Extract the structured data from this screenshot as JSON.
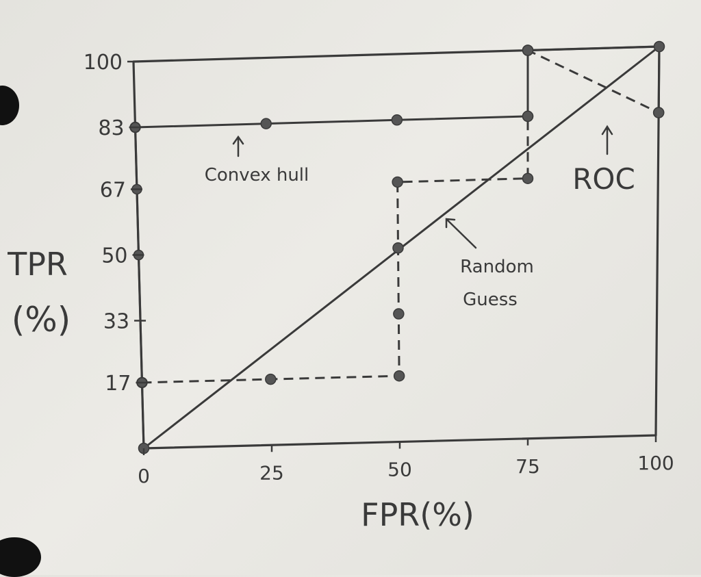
{
  "chart_data": {
    "type": "line",
    "xlabel": "FPR(%)",
    "ylabel_line1": "TPR",
    "ylabel_line2": "(%)",
    "xlim": [
      0,
      100
    ],
    "ylim": [
      0,
      100
    ],
    "x_ticks": [
      0,
      25,
      50,
      75,
      100
    ],
    "x_tick_labels": [
      "0",
      "25",
      "50",
      "75",
      "100"
    ],
    "y_ticks": [
      17,
      33,
      50,
      67,
      83,
      100
    ],
    "y_tick_labels": [
      "17",
      "33",
      "50",
      "67",
      "83",
      "100"
    ],
    "grid": false,
    "series": [
      {
        "name": "ROC",
        "style": "dashed",
        "x": [
          0,
          25,
          50,
          50,
          50,
          50,
          75,
          75,
          75,
          100
        ],
        "y": [
          17,
          17,
          17,
          33,
          50,
          67,
          67,
          83,
          100,
          83
        ]
      },
      {
        "name": "Convex hull",
        "style": "solid",
        "x": [
          0,
          0,
          25,
          50,
          75,
          75,
          100,
          100
        ],
        "y": [
          0,
          83,
          83,
          83,
          83,
          100,
          100,
          83
        ]
      },
      {
        "name": "Random Guess",
        "style": "solid",
        "x": [
          0,
          100
        ],
        "y": [
          0,
          100
        ]
      }
    ],
    "left_axis_points": [
      83,
      67,
      50,
      17
    ],
    "annotations": {
      "convex_hull": "Convex hull",
      "roc": "ROC",
      "random_guess_line1": "Random",
      "random_guess_line2": "Guess"
    }
  },
  "colors": {
    "ink": "#3a3a3a",
    "paper": "#e8e7e2"
  }
}
